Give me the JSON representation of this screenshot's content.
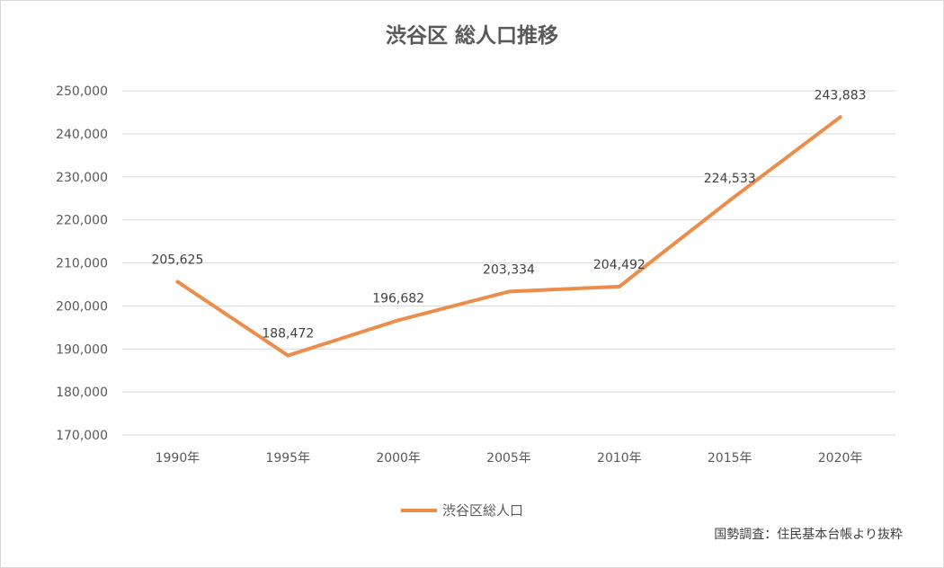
{
  "chart_data": {
    "type": "line",
    "title": "渋谷区 総人口推移",
    "xlabel": "",
    "ylabel": "",
    "categories": [
      "1990年",
      "1995年",
      "2000年",
      "2005年",
      "2010年",
      "2015年",
      "2020年"
    ],
    "series": [
      {
        "name": "渋谷区総人口",
        "values": [
          205625,
          188472,
          196682,
          203334,
          204492,
          224533,
          243883
        ],
        "data_labels": [
          "205,625",
          "188,472",
          "196,682",
          "203,334",
          "204,492",
          "224,533",
          "243,883"
        ],
        "color": "#ED8D4B"
      }
    ],
    "ylim": [
      170000,
      250000
    ],
    "yticks": [
      170000,
      180000,
      190000,
      200000,
      210000,
      220000,
      230000,
      240000,
      250000
    ],
    "ytick_labels": [
      "170,000",
      "180,000",
      "190,000",
      "200,000",
      "210,000",
      "220,000",
      "230,000",
      "240,000",
      "250,000"
    ],
    "grid": true,
    "legend": "bottom",
    "annotation": "国勢調査：住民基本台帳より抜粋"
  },
  "colors": {
    "line": "#ED8D4B",
    "grid": "#d9d9d9",
    "axis_text": "#595959"
  }
}
